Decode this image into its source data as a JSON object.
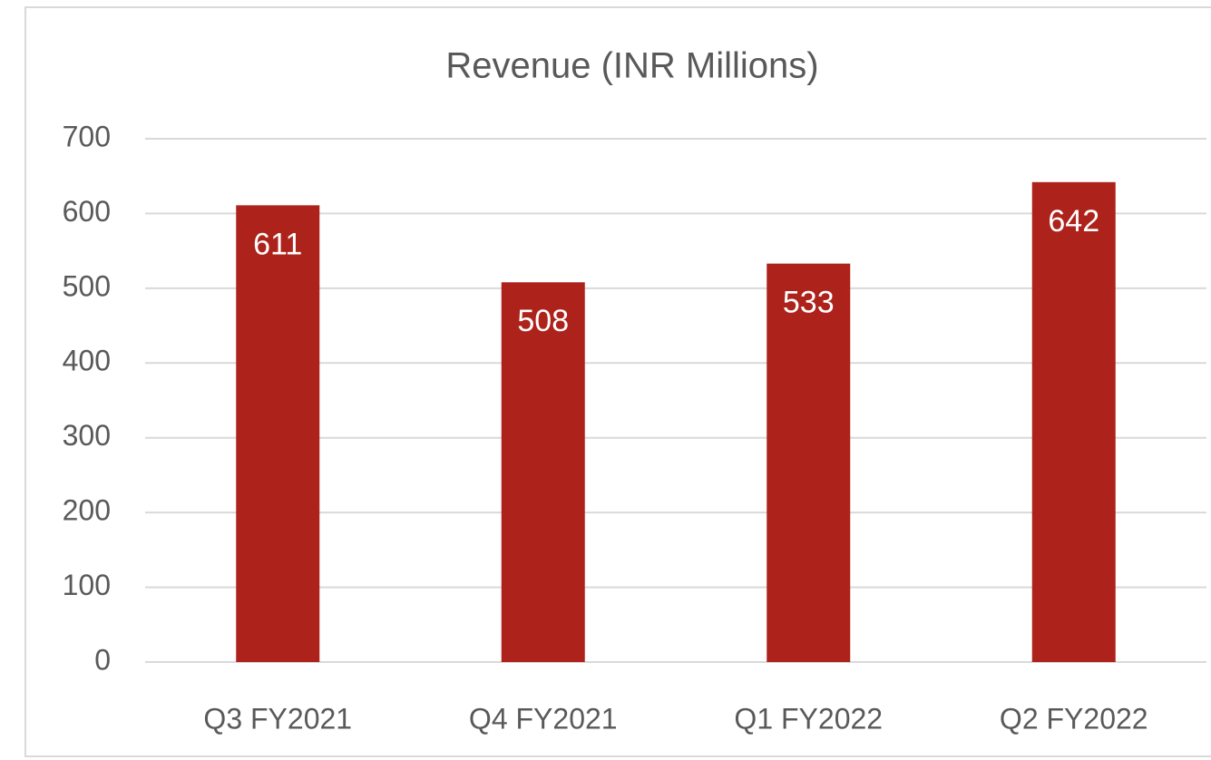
{
  "chart_data": {
    "type": "bar",
    "title": "Revenue (INR Millions)",
    "categories": [
      "Q3 FY2021",
      "Q4 FY2021",
      "Q1 FY2022",
      "Q2 FY2022"
    ],
    "values": [
      611,
      508,
      533,
      642
    ],
    "color": "#ad231c",
    "ylim": [
      0,
      700
    ],
    "yticks": [
      0,
      100,
      200,
      300,
      400,
      500,
      600,
      700
    ],
    "grid": true
  }
}
